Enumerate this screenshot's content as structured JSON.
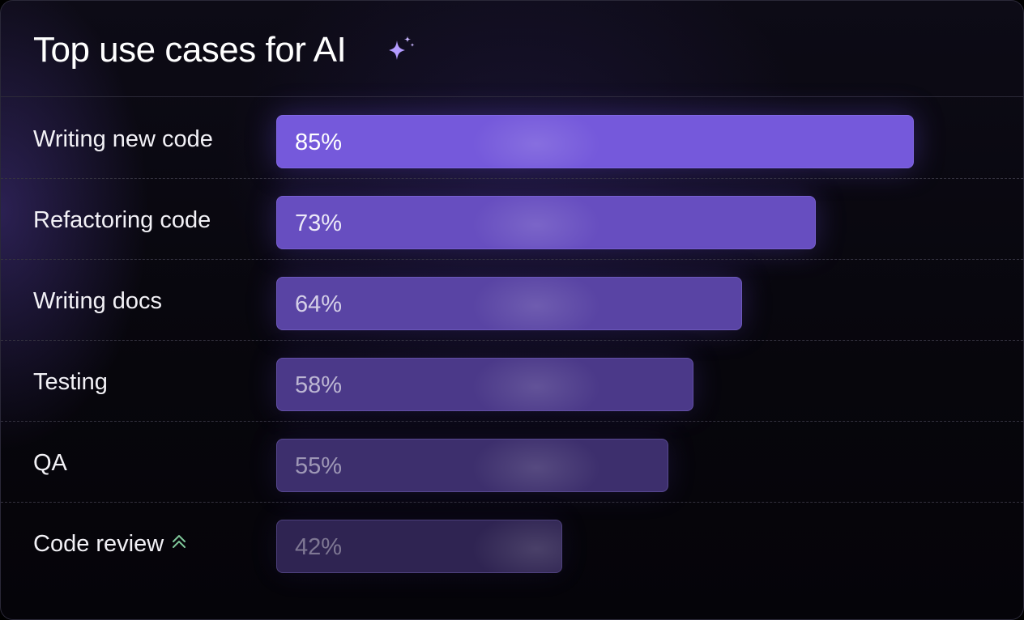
{
  "title": "Top use cases for AI",
  "icons": {
    "title_icon": "sparkle-icon",
    "trend_icon": "double-chevron-up-icon"
  },
  "colors": {
    "bar_strong": "#7559db",
    "bar_weak": "#2f2452",
    "trend_icon": "#7fc79a",
    "sparkle": "#b49cff"
  },
  "chart_data": {
    "type": "bar",
    "orientation": "horizontal",
    "title": "Top use cases for AI",
    "xlabel": "",
    "ylabel": "",
    "xlim": [
      0,
      100
    ],
    "grid": false,
    "legend": "none",
    "categories": [
      "Writing new code",
      "Refactoring code",
      "Writing docs",
      "Testing",
      "QA",
      "Code review"
    ],
    "values": [
      85,
      73,
      64,
      58,
      55,
      42
    ],
    "value_labels": [
      "85%",
      "73%",
      "64%",
      "58%",
      "55%",
      "42%"
    ],
    "annotations": [
      {
        "category": "Code review",
        "icon": "double-chevron-up-icon"
      }
    ]
  }
}
